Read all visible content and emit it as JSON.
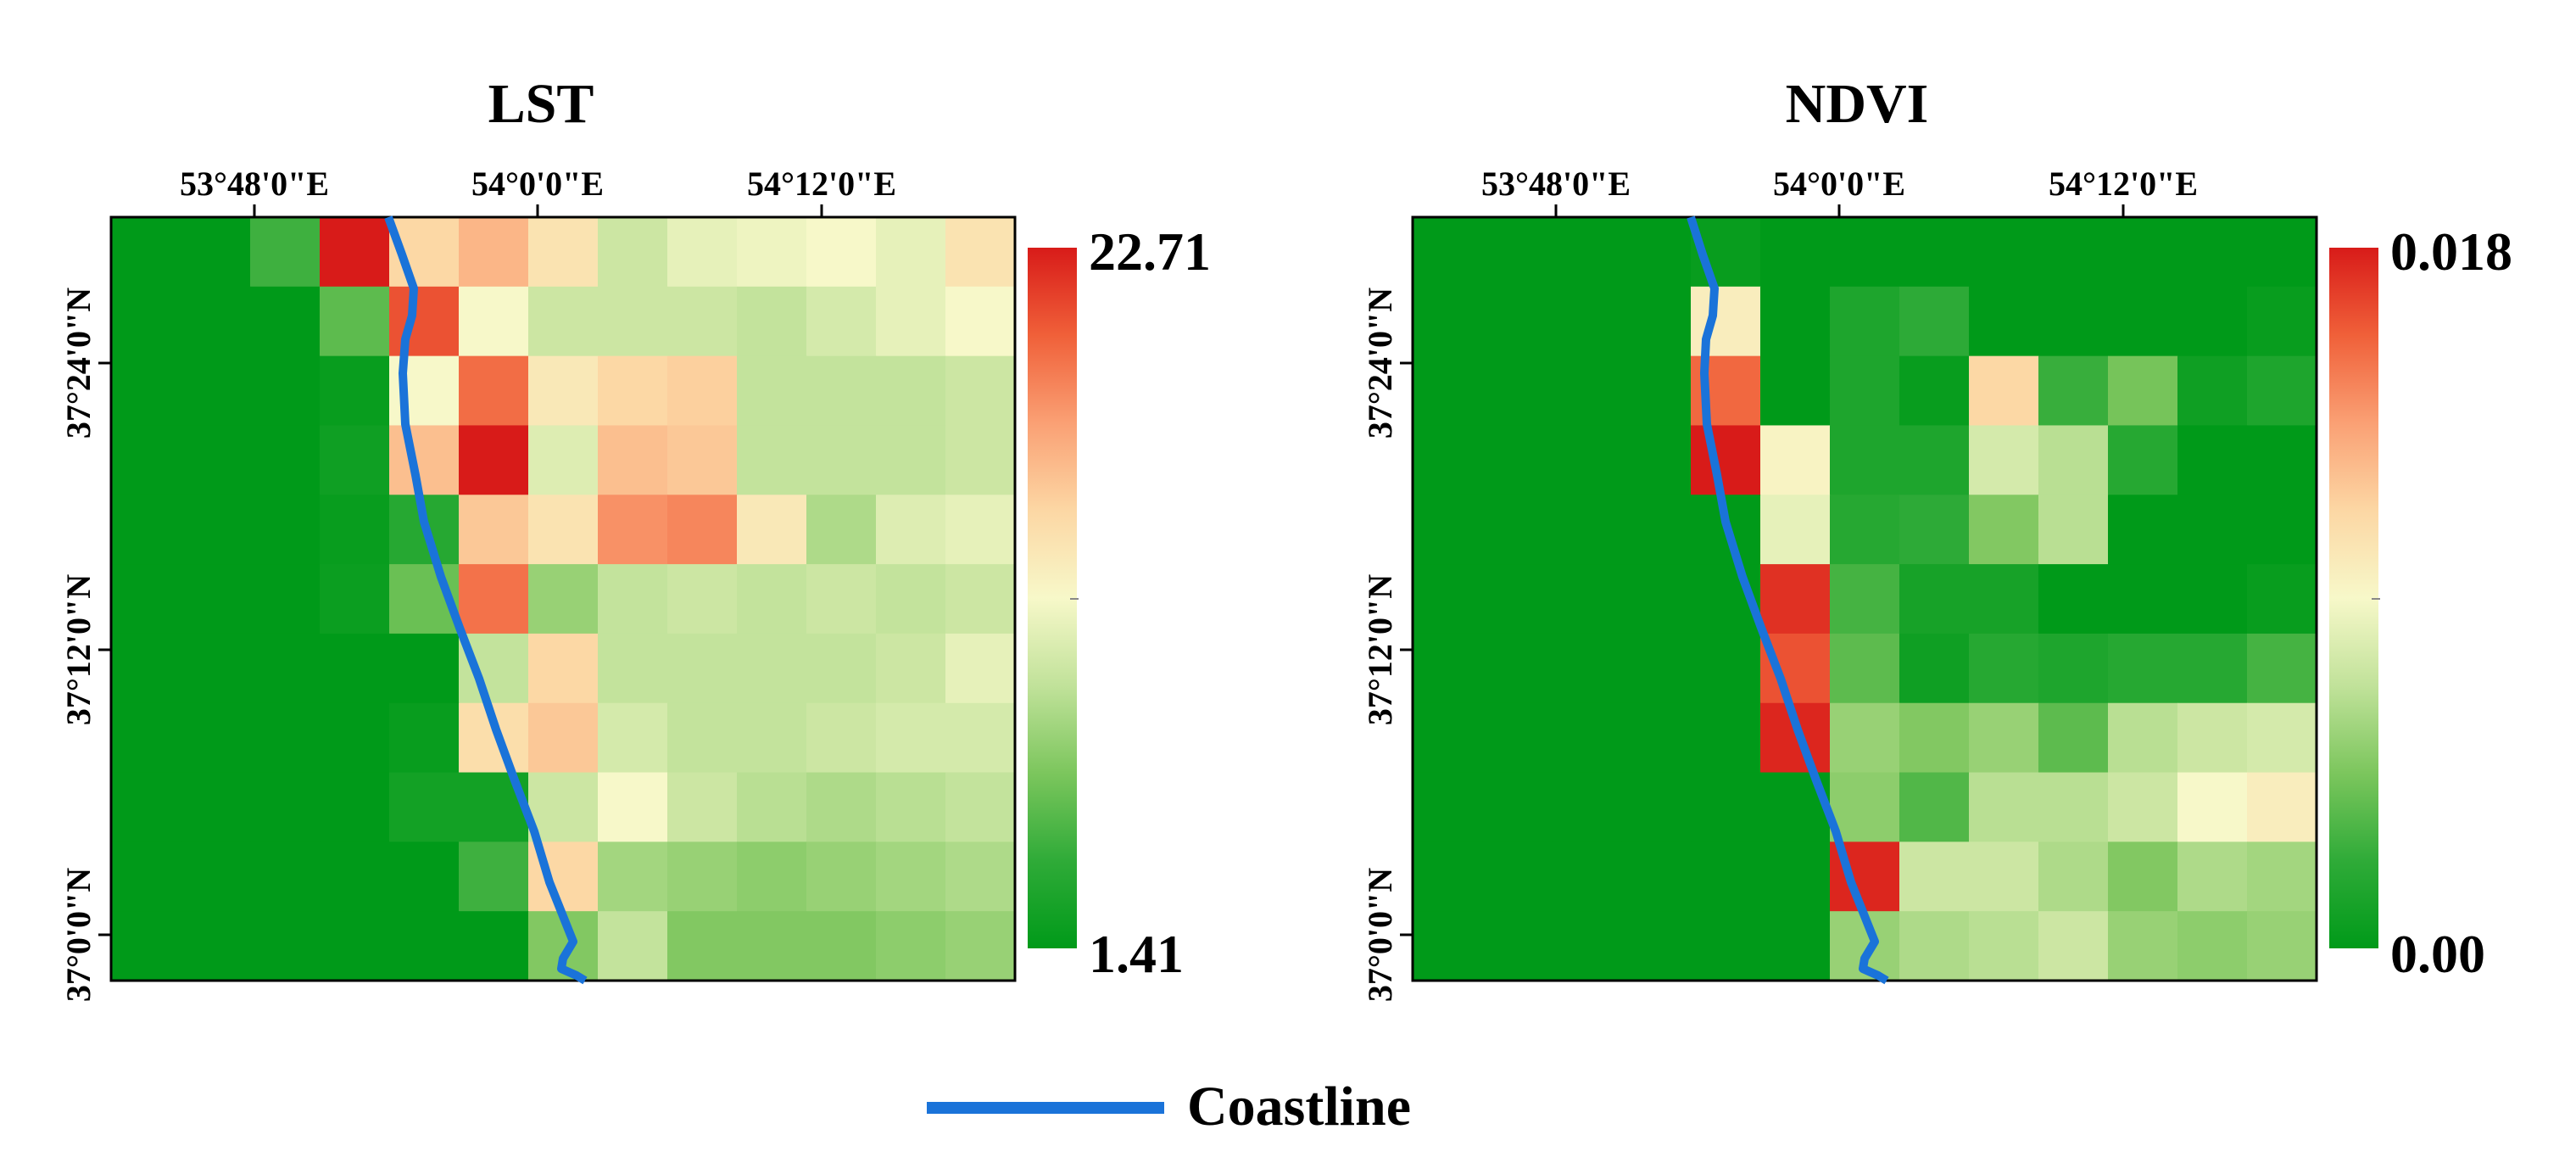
{
  "panels": [
    {
      "id": "lst",
      "title": "LST",
      "x_ticks": [
        "53°48'0\"E",
        "54°0'0\"E",
        "54°12'0\"E"
      ],
      "y_ticks": [
        "37°24'0\"N",
        "37°12'0\"N",
        "37°0'0\"N"
      ],
      "colorbar": {
        "max_label": "22.71",
        "min_label": "1.41",
        "max": 22.71,
        "min": 1.41
      }
    },
    {
      "id": "ndvi",
      "title": "NDVI",
      "x_ticks": [
        "53°48'0\"E",
        "54°0'0\"E",
        "54°12'0\"E"
      ],
      "y_ticks": [
        "37°24'0\"N",
        "37°12'0\"N",
        "37°0'0\"N"
      ],
      "colorbar": {
        "max_label": "0.018",
        "min_label": "0.00",
        "max": 0.018,
        "min": 0.0
      }
    }
  ],
  "legend": {
    "label": "Coastline",
    "color": "#1a73d9"
  },
  "colormap": [
    "#009a19",
    "#2fab38",
    "#7cc65d",
    "#c1e29a",
    "#f7f8c9",
    "#fcd7a4",
    "#faa074",
    "#f06039",
    "#d81b19"
  ],
  "chart_data": [
    {
      "type": "heatmap",
      "title": "LST",
      "value_range": [
        1.41,
        22.71
      ],
      "rows": 11,
      "cols": 13,
      "grid_values_normalized": [
        [
          0.0,
          0.0,
          0.15,
          1.0,
          0.62,
          0.7,
          0.58,
          0.4,
          0.46,
          0.48,
          0.5,
          0.46,
          0.58
        ],
        [
          0.0,
          0.0,
          0.0,
          0.2,
          0.9,
          0.5,
          0.4,
          0.4,
          0.4,
          0.38,
          0.42,
          0.46,
          0.5
        ],
        [
          0.0,
          0.0,
          0.0,
          0.02,
          0.5,
          0.85,
          0.56,
          0.62,
          0.64,
          0.38,
          0.38,
          0.38,
          0.4
        ],
        [
          0.0,
          0.0,
          0.0,
          0.04,
          0.68,
          1.0,
          0.44,
          0.68,
          0.66,
          0.38,
          0.38,
          0.38,
          0.4
        ],
        [
          0.0,
          0.0,
          0.0,
          0.02,
          0.1,
          0.66,
          0.58,
          0.78,
          0.8,
          0.56,
          0.34,
          0.44,
          0.46
        ],
        [
          0.0,
          0.0,
          0.0,
          0.03,
          0.22,
          0.84,
          0.3,
          0.38,
          0.4,
          0.38,
          0.4,
          0.38,
          0.4
        ],
        [
          0.0,
          0.0,
          0.0,
          0.0,
          0.0,
          0.38,
          0.62,
          0.38,
          0.38,
          0.38,
          0.38,
          0.4,
          0.46
        ],
        [
          0.0,
          0.0,
          0.0,
          0.0,
          0.02,
          0.6,
          0.66,
          0.42,
          0.38,
          0.38,
          0.4,
          0.42,
          0.42
        ],
        [
          0.0,
          0.0,
          0.0,
          0.0,
          0.05,
          0.05,
          0.4,
          0.5,
          0.4,
          0.36,
          0.34,
          0.36,
          0.38
        ],
        [
          0.0,
          0.0,
          0.0,
          0.0,
          0.0,
          0.15,
          0.62,
          0.32,
          0.3,
          0.28,
          0.3,
          0.32,
          0.34
        ],
        [
          0.0,
          0.0,
          0.0,
          0.0,
          0.0,
          0.0,
          0.26,
          0.38,
          0.26,
          0.26,
          0.26,
          0.28,
          0.3
        ]
      ],
      "x_ticks": [
        "53°48'0\"E",
        "54°0'0\"E",
        "54°12'0\"E"
      ],
      "y_ticks": [
        "37°24'0\"N",
        "37°12'0\"N",
        "37°0'0\"N"
      ],
      "colorbar": {
        "min": 1.41,
        "max": 22.71
      }
    },
    {
      "type": "heatmap",
      "title": "NDVI",
      "value_range": [
        0.0,
        0.018
      ],
      "rows": 11,
      "cols": 13,
      "grid_values_normalized": [
        [
          0.0,
          0.0,
          0.0,
          0.0,
          0.02,
          0.0,
          0.0,
          0.0,
          0.0,
          0.0,
          0.0,
          0.0,
          0.0
        ],
        [
          0.0,
          0.0,
          0.0,
          0.0,
          0.54,
          0.0,
          0.08,
          0.12,
          0.0,
          0.0,
          0.0,
          0.0,
          0.02
        ],
        [
          0.0,
          0.0,
          0.0,
          0.0,
          0.86,
          0.0,
          0.08,
          0.02,
          0.62,
          0.14,
          0.24,
          0.04,
          0.08
        ],
        [
          0.0,
          0.0,
          0.0,
          0.0,
          1.0,
          0.52,
          0.08,
          0.08,
          0.42,
          0.36,
          0.1,
          0.0,
          0.0
        ],
        [
          0.0,
          0.0,
          0.0,
          0.0,
          0.0,
          0.46,
          0.1,
          0.12,
          0.26,
          0.36,
          0.0,
          0.0,
          0.0
        ],
        [
          0.0,
          0.0,
          0.0,
          0.0,
          0.0,
          0.96,
          0.16,
          0.06,
          0.06,
          0.0,
          0.0,
          0.0,
          0.02
        ],
        [
          0.0,
          0.0,
          0.0,
          0.0,
          0.0,
          0.9,
          0.2,
          0.04,
          0.1,
          0.08,
          0.1,
          0.1,
          0.16
        ],
        [
          0.0,
          0.0,
          0.0,
          0.0,
          0.0,
          0.98,
          0.3,
          0.26,
          0.3,
          0.2,
          0.36,
          0.4,
          0.42
        ],
        [
          0.0,
          0.0,
          0.0,
          0.0,
          0.0,
          0.0,
          0.28,
          0.18,
          0.36,
          0.36,
          0.4,
          0.5,
          0.54
        ],
        [
          0.0,
          0.0,
          0.0,
          0.0,
          0.0,
          0.0,
          0.98,
          0.4,
          0.4,
          0.34,
          0.26,
          0.34,
          0.32
        ],
        [
          0.0,
          0.0,
          0.0,
          0.0,
          0.0,
          0.0,
          0.3,
          0.34,
          0.36,
          0.4,
          0.3,
          0.28,
          0.3
        ]
      ],
      "x_ticks": [
        "53°48'0\"E",
        "54°0'0\"E",
        "54°12'0\"E"
      ],
      "y_ticks": [
        "37°24'0\"N",
        "37°12'0\"N",
        "37°0'0\"N"
      ],
      "colorbar": {
        "min": 0.0,
        "max": 0.018
      }
    }
  ]
}
